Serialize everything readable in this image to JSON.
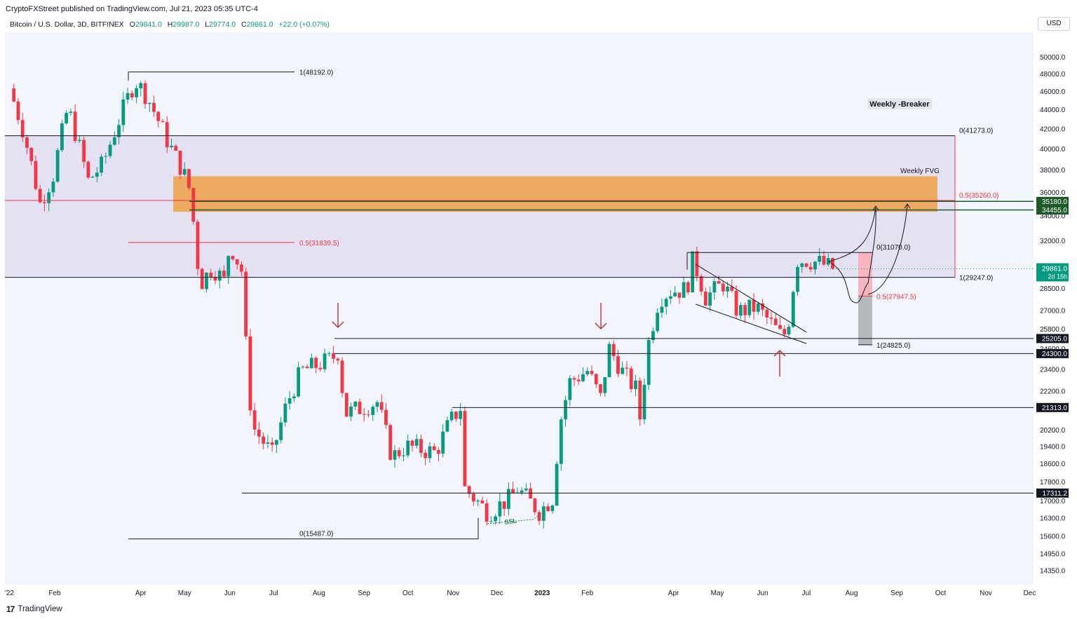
{
  "header": {
    "published": "CryptoFXStreet published on TradingView.com, Jul 21, 2023 05:35 UTC-4",
    "symbol": "Bitcoin / U.S. Dollar, 3D, BITFINEX",
    "o_label": "O",
    "o_value": "29841.0",
    "h_label": "H",
    "h_value": "29987.0",
    "l_label": "L",
    "l_value": "29774.0",
    "c_label": "C",
    "c_value": "29861.0",
    "change": "+22.0 (+0.07%)",
    "currency": "USD"
  },
  "footer": {
    "brand": "TradingView"
  },
  "colors": {
    "up": "#089981",
    "down": "#f23645",
    "premium_zone": "#e2def0",
    "fvg": "#f0a048",
    "fib_mid": "#f23645",
    "level_box": "#1e5a28",
    "price": "#089981"
  },
  "chart_data": {
    "type": "candlestick",
    "timeframe": "3D",
    "y_scale": "log",
    "y_ticks": [
      14350,
      14950,
      15600,
      16300,
      17000,
      17800,
      18600,
      19400,
      20200,
      21300,
      22200,
      23400,
      24600,
      25800,
      27000,
      28500,
      30000,
      32000,
      34000,
      36000,
      38000,
      40000,
      42000,
      44000,
      46000,
      48000,
      50000
    ],
    "y_tick_labels": [
      "14350.0",
      "14950.0",
      "15600.0",
      "16300.0",
      "17000.0",
      "17800.0",
      "18600.0",
      "19400.0",
      "20200.0",
      "21300.0",
      "22200.0",
      "23400.0",
      "24600.0",
      "25800.0",
      "27000.0",
      "28500.0",
      "30000.0",
      "32000.0",
      "34000.0",
      "36000.0",
      "38000.0",
      "40000.0",
      "42000.0",
      "44000.0",
      "46000.0",
      "48000.0",
      "50000.0"
    ],
    "x_ticks": [
      {
        "date": "2022-01-01",
        "label": "'22"
      },
      {
        "date": "2022-02-01",
        "label": "Feb"
      },
      {
        "date": "2022-04-01",
        "label": "Apr"
      },
      {
        "date": "2022-05-01",
        "label": "May"
      },
      {
        "date": "2022-06-01",
        "label": "Jun"
      },
      {
        "date": "2022-07-01",
        "label": "Jul"
      },
      {
        "date": "2022-08-01",
        "label": "Aug"
      },
      {
        "date": "2022-09-01",
        "label": "Sep"
      },
      {
        "date": "2022-10-01",
        "label": "Oct"
      },
      {
        "date": "2022-11-01",
        "label": "Nov"
      },
      {
        "date": "2022-12-01",
        "label": "Dec"
      },
      {
        "date": "2023-01-01",
        "label": "2023",
        "bold": true
      },
      {
        "date": "2023-02-01",
        "label": "Feb"
      },
      {
        "date": "2023-04-01",
        "label": "Apr"
      },
      {
        "date": "2023-05-01",
        "label": "May"
      },
      {
        "date": "2023-06-01",
        "label": "Jun"
      },
      {
        "date": "2023-07-01",
        "label": "Jul"
      },
      {
        "date": "2023-08-01",
        "label": "Aug"
      },
      {
        "date": "2023-09-01",
        "label": "Sep"
      },
      {
        "date": "2023-10-01",
        "label": "Oct"
      },
      {
        "date": "2023-11-01",
        "label": "Nov"
      },
      {
        "date": "2023-12-01",
        "label": "Dec"
      }
    ],
    "price_path": [
      [
        "2022-01-01",
        46300
      ],
      [
        "2022-01-10",
        42000
      ],
      [
        "2022-01-22",
        35000
      ],
      [
        "2022-01-31",
        37500
      ],
      [
        "2022-02-10",
        44200
      ],
      [
        "2022-02-24",
        37000
      ],
      [
        "2022-03-06",
        38500
      ],
      [
        "2022-03-28",
        47200
      ],
      [
        "2022-04-05",
        45500
      ],
      [
        "2022-04-20",
        40500
      ],
      [
        "2022-04-30",
        37800
      ],
      [
        "2022-05-05",
        36000
      ],
      [
        "2022-05-09",
        31000
      ],
      [
        "2022-05-12",
        28800
      ],
      [
        "2022-05-20",
        30000
      ],
      [
        "2022-05-28",
        29000
      ],
      [
        "2022-06-01",
        31700
      ],
      [
        "2022-06-10",
        29500
      ],
      [
        "2022-06-13",
        22500
      ],
      [
        "2022-06-18",
        20200
      ],
      [
        "2022-06-30",
        19000
      ],
      [
        "2022-07-10",
        21500
      ],
      [
        "2022-07-20",
        23300
      ],
      [
        "2022-07-30",
        23600
      ],
      [
        "2022-08-10",
        24000
      ],
      [
        "2022-08-14",
        24400
      ],
      [
        "2022-08-19",
        21000
      ],
      [
        "2022-09-10",
        21600
      ],
      [
        "2022-09-20",
        18900
      ],
      [
        "2022-09-30",
        19400
      ],
      [
        "2022-10-20",
        19100
      ],
      [
        "2022-10-30",
        20600
      ],
      [
        "2022-11-06",
        21300
      ],
      [
        "2022-11-09",
        17500
      ],
      [
        "2022-11-25",
        16500
      ],
      [
        "2022-12-10",
        17100
      ],
      [
        "2022-12-15",
        17500
      ],
      [
        "2022-12-30",
        16550
      ],
      [
        "2023-01-08",
        17100
      ],
      [
        "2023-01-14",
        20800
      ],
      [
        "2023-01-20",
        22700
      ],
      [
        "2023-02-01",
        23300
      ],
      [
        "2023-02-10",
        21800
      ],
      [
        "2023-02-16",
        24600
      ],
      [
        "2023-02-26",
        23100
      ],
      [
        "2023-03-06",
        22300
      ],
      [
        "2023-03-10",
        20300
      ],
      [
        "2023-03-13",
        24200
      ],
      [
        "2023-03-22",
        27800
      ],
      [
        "2023-03-30",
        28300
      ],
      [
        "2023-04-10",
        28400
      ],
      [
        "2023-04-14",
        30400
      ],
      [
        "2023-04-19",
        29300
      ],
      [
        "2023-04-22",
        27800
      ],
      [
        "2023-05-05",
        28800
      ],
      [
        "2023-05-15",
        26900
      ],
      [
        "2023-05-28",
        27200
      ],
      [
        "2023-06-10",
        25800
      ],
      [
        "2023-06-15",
        25200
      ],
      [
        "2023-06-20",
        26700
      ],
      [
        "2023-06-24",
        30500
      ],
      [
        "2023-07-01",
        30500
      ],
      [
        "2023-07-10",
        30300
      ],
      [
        "2023-07-20",
        29861
      ]
    ],
    "levels": [
      {
        "value": 25205,
        "label": "25205.0"
      },
      {
        "value": 24300,
        "label": "24300.0"
      },
      {
        "value": 21313,
        "label": "21313.0"
      },
      {
        "value": 17311.2,
        "label": "17311.2"
      },
      {
        "value": 35180,
        "label": "35180.0"
      },
      {
        "value": 34455,
        "label": "34455.0"
      }
    ],
    "last_price": {
      "label": "29861.0",
      "countdown": "2d 15h",
      "value": 29861
    },
    "fib_labels": [
      {
        "text": "1(48192.0)",
        "value": 48192
      },
      {
        "text": "0.5(31839.5)",
        "value": 31839.5
      },
      {
        "text": "0(15487.0)",
        "value": 15487
      },
      {
        "text": "0(41273.0)",
        "value": 41273
      },
      {
        "text": "0.5(35260.0)",
        "value": 35260
      },
      {
        "text": "1(29247.0)",
        "value": 29247
      },
      {
        "text": "0(31070.0)",
        "value": 31070
      },
      {
        "text": "0.5(27947.5)",
        "value": 27947.5
      },
      {
        "text": "1(24825.0)",
        "value": 24825
      }
    ],
    "annotations": {
      "weekly_breaker": "Weekly -Breaker",
      "weekly_fvg": "Weekly FVG",
      "ssl": "SSL"
    }
  }
}
